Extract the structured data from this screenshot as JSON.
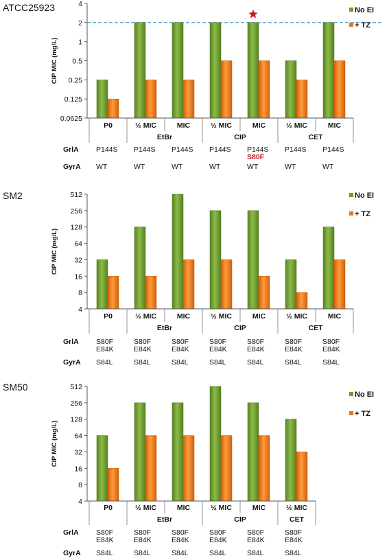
{
  "colors": {
    "no_ei": "#6f9c2e",
    "tz": "#ee7411",
    "ref_line": "#4aa3c8",
    "star": "#d0161b",
    "mutation_highlight": "#c0161b"
  },
  "legend": {
    "no_ei": "No EI",
    "tz": "+ TZ"
  },
  "row_labels": {
    "grla": "GrlA",
    "gyra": "GyrA"
  },
  "chart_data": [
    {
      "type": "bar",
      "title": "ATCC25923",
      "ylabel": "CIP MIC (mg/L)",
      "yscale": "log2",
      "ylim": [
        0.0625,
        4
      ],
      "yticks": [
        "0.0625",
        "0.125",
        "0.25",
        "0.5",
        "1",
        "2",
        "4"
      ],
      "reference_line": 2,
      "star_category_index": 4,
      "categories": [
        "P0",
        "½ MIC",
        "MIC",
        "½ MIC",
        "MIC",
        "½ MIC",
        "MIC"
      ],
      "groups": [
        {
          "label": "EtBr",
          "span": [
            1,
            2
          ]
        },
        {
          "label": "CIP",
          "span": [
            3,
            4
          ]
        },
        {
          "label": "CET",
          "span": [
            5,
            6
          ]
        }
      ],
      "series": [
        {
          "name": "No EI",
          "values": [
            0.25,
            2,
            2,
            2,
            2,
            0.5,
            2
          ]
        },
        {
          "name": "+ TZ",
          "values": [
            0.125,
            0.25,
            0.25,
            0.5,
            0.5,
            0.25,
            0.5
          ]
        }
      ],
      "grla": [
        [
          "P144S"
        ],
        [
          "P144S"
        ],
        [
          "P144S"
        ],
        [
          "P144S"
        ],
        [
          "P144S",
          "S80F"
        ],
        [
          "P144S"
        ],
        [
          "P144S"
        ]
      ],
      "gyra": [
        "WT",
        "WT",
        "WT",
        "WT",
        "WT",
        "WT",
        "WT"
      ],
      "highlighted_mutation": "S80F"
    },
    {
      "type": "bar",
      "title": "SM2",
      "ylabel": "CIP MIC (mg/L)",
      "yscale": "log2",
      "ylim": [
        4,
        512
      ],
      "yticks": [
        "4",
        "8",
        "16",
        "32",
        "64",
        "128",
        "256",
        "512"
      ],
      "categories": [
        "P0",
        "½ MIC",
        "MIC",
        "½ MIC",
        "MIC",
        "½ MIC",
        "MIC"
      ],
      "groups": [
        {
          "label": "EtBr",
          "span": [
            1,
            2
          ]
        },
        {
          "label": "CIP",
          "span": [
            3,
            4
          ]
        },
        {
          "label": "CET",
          "span": [
            5,
            6
          ]
        }
      ],
      "series": [
        {
          "name": "No EI",
          "values": [
            32,
            128,
            512,
            256,
            256,
            32,
            128
          ]
        },
        {
          "name": "+ TZ",
          "values": [
            16,
            16,
            32,
            32,
            16,
            8,
            32
          ]
        }
      ],
      "grla": [
        [
          "S80F",
          "E84K"
        ],
        [
          "S80F",
          "E84K"
        ],
        [
          "S80F",
          "E84K"
        ],
        [
          "S80F",
          "E84K"
        ],
        [
          "S80F",
          "E84K"
        ],
        [
          "S80F",
          "E84K"
        ],
        [
          "S80F",
          "E84K"
        ]
      ],
      "gyra": [
        "S84L",
        "S84L",
        "S84L",
        "S84L",
        "S84L",
        "S84L",
        "S84L"
      ]
    },
    {
      "type": "bar",
      "title": "SM50",
      "ylabel": "CIP MIC (mg/L)",
      "yscale": "log2",
      "ylim": [
        4,
        512
      ],
      "yticks": [
        "4",
        "8",
        "16",
        "32",
        "64",
        "128",
        "256",
        "512"
      ],
      "categories": [
        "P0",
        "½ MIC",
        "MIC",
        "½ MIC",
        "MIC",
        "½ MIC"
      ],
      "groups": [
        {
          "label": "EtBr",
          "span": [
            1,
            2
          ]
        },
        {
          "label": "CIP",
          "span": [
            3,
            4
          ]
        },
        {
          "label": "CET",
          "span": [
            5,
            5
          ]
        }
      ],
      "series": [
        {
          "name": "No EI",
          "values": [
            64,
            256,
            256,
            512,
            256,
            128
          ]
        },
        {
          "name": "+ TZ",
          "values": [
            16,
            64,
            64,
            64,
            64,
            32
          ]
        }
      ],
      "grla": [
        [
          "S80F",
          "E84K"
        ],
        [
          "S80F",
          "E84K"
        ],
        [
          "S80F",
          "E84K"
        ],
        [
          "S80F",
          "E84K"
        ],
        [
          "S80F",
          "E84K"
        ],
        [
          "S80F",
          "E84K"
        ]
      ],
      "gyra": [
        "S84L",
        "S84L",
        "S84L",
        "S84L",
        "S84L",
        "S84L"
      ]
    }
  ]
}
